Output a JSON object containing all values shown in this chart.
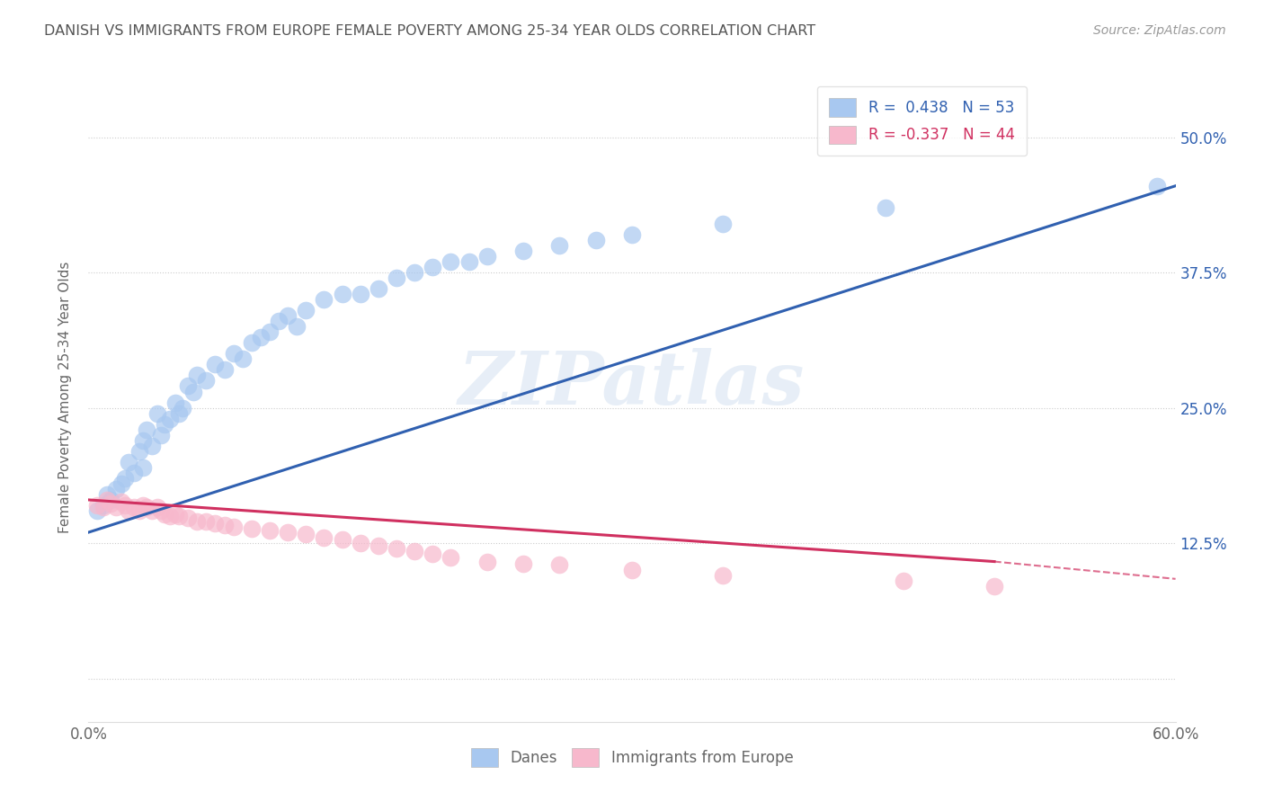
{
  "title": "DANISH VS IMMIGRANTS FROM EUROPE FEMALE POVERTY AMONG 25-34 YEAR OLDS CORRELATION CHART",
  "source": "Source: ZipAtlas.com",
  "ylabel": "Female Poverty Among 25-34 Year Olds",
  "xlim": [
    0.0,
    0.6
  ],
  "ylim": [
    -0.04,
    0.56
  ],
  "ytick_positions": [
    0.0,
    0.125,
    0.25,
    0.375,
    0.5
  ],
  "ytick_labels": [
    "",
    "12.5%",
    "25.0%",
    "37.5%",
    "50.0%"
  ],
  "legend1_label": "R =  0.438   N = 53",
  "legend2_label": "R = -0.337   N = 44",
  "danes_color": "#A8C8F0",
  "immigrants_color": "#F7B8CC",
  "danes_line_color": "#3060B0",
  "immigrants_line_color": "#D03060",
  "danes_scatter": [
    [
      0.005,
      0.155
    ],
    [
      0.008,
      0.16
    ],
    [
      0.01,
      0.17
    ],
    [
      0.012,
      0.165
    ],
    [
      0.015,
      0.175
    ],
    [
      0.018,
      0.18
    ],
    [
      0.02,
      0.185
    ],
    [
      0.022,
      0.2
    ],
    [
      0.025,
      0.19
    ],
    [
      0.028,
      0.21
    ],
    [
      0.03,
      0.22
    ],
    [
      0.03,
      0.195
    ],
    [
      0.032,
      0.23
    ],
    [
      0.035,
      0.215
    ],
    [
      0.038,
      0.245
    ],
    [
      0.04,
      0.225
    ],
    [
      0.042,
      0.235
    ],
    [
      0.045,
      0.24
    ],
    [
      0.048,
      0.255
    ],
    [
      0.05,
      0.245
    ],
    [
      0.052,
      0.25
    ],
    [
      0.055,
      0.27
    ],
    [
      0.058,
      0.265
    ],
    [
      0.06,
      0.28
    ],
    [
      0.065,
      0.275
    ],
    [
      0.07,
      0.29
    ],
    [
      0.075,
      0.285
    ],
    [
      0.08,
      0.3
    ],
    [
      0.085,
      0.295
    ],
    [
      0.09,
      0.31
    ],
    [
      0.095,
      0.315
    ],
    [
      0.1,
      0.32
    ],
    [
      0.105,
      0.33
    ],
    [
      0.11,
      0.335
    ],
    [
      0.115,
      0.325
    ],
    [
      0.12,
      0.34
    ],
    [
      0.13,
      0.35
    ],
    [
      0.14,
      0.355
    ],
    [
      0.15,
      0.355
    ],
    [
      0.16,
      0.36
    ],
    [
      0.17,
      0.37
    ],
    [
      0.18,
      0.375
    ],
    [
      0.19,
      0.38
    ],
    [
      0.2,
      0.385
    ],
    [
      0.21,
      0.385
    ],
    [
      0.22,
      0.39
    ],
    [
      0.24,
      0.395
    ],
    [
      0.26,
      0.4
    ],
    [
      0.28,
      0.405
    ],
    [
      0.3,
      0.41
    ],
    [
      0.35,
      0.42
    ],
    [
      0.44,
      0.435
    ],
    [
      0.59,
      0.455
    ]
  ],
  "immigrants_scatter": [
    [
      0.005,
      0.16
    ],
    [
      0.008,
      0.158
    ],
    [
      0.01,
      0.165
    ],
    [
      0.012,
      0.162
    ],
    [
      0.015,
      0.158
    ],
    [
      0.018,
      0.163
    ],
    [
      0.02,
      0.16
    ],
    [
      0.022,
      0.155
    ],
    [
      0.025,
      0.158
    ],
    [
      0.028,
      0.155
    ],
    [
      0.03,
      0.16
    ],
    [
      0.032,
      0.158
    ],
    [
      0.035,
      0.155
    ],
    [
      0.038,
      0.158
    ],
    [
      0.04,
      0.155
    ],
    [
      0.042,
      0.152
    ],
    [
      0.045,
      0.15
    ],
    [
      0.048,
      0.152
    ],
    [
      0.05,
      0.15
    ],
    [
      0.055,
      0.148
    ],
    [
      0.06,
      0.145
    ],
    [
      0.065,
      0.145
    ],
    [
      0.07,
      0.143
    ],
    [
      0.075,
      0.142
    ],
    [
      0.08,
      0.14
    ],
    [
      0.09,
      0.138
    ],
    [
      0.1,
      0.137
    ],
    [
      0.11,
      0.135
    ],
    [
      0.12,
      0.133
    ],
    [
      0.13,
      0.13
    ],
    [
      0.14,
      0.128
    ],
    [
      0.15,
      0.125
    ],
    [
      0.16,
      0.123
    ],
    [
      0.17,
      0.12
    ],
    [
      0.18,
      0.118
    ],
    [
      0.19,
      0.115
    ],
    [
      0.2,
      0.112
    ],
    [
      0.22,
      0.108
    ],
    [
      0.24,
      0.106
    ],
    [
      0.26,
      0.105
    ],
    [
      0.3,
      0.1
    ],
    [
      0.35,
      0.095
    ],
    [
      0.45,
      0.09
    ],
    [
      0.5,
      0.085
    ]
  ],
  "watermark": "ZIPatlas",
  "background_color": "#FFFFFF",
  "grid_color": "#CCCCCC"
}
